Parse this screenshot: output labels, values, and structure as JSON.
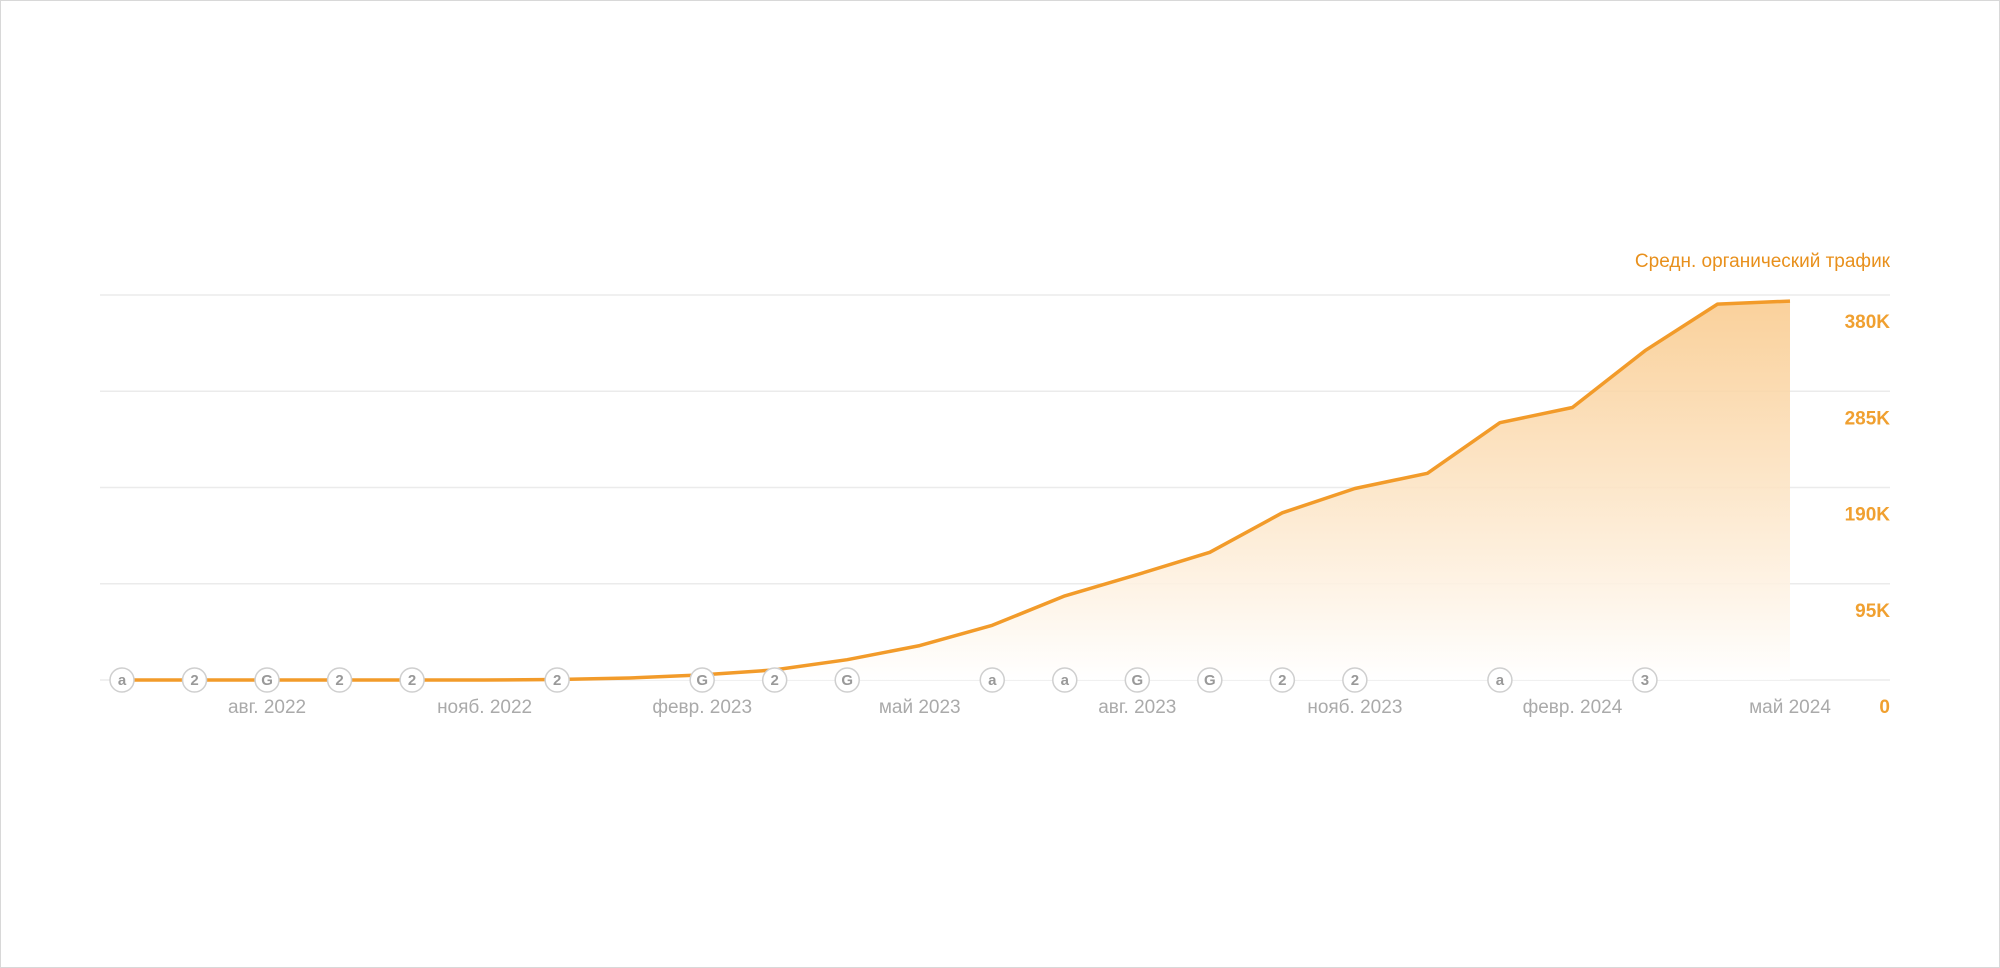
{
  "chart_data": {
    "type": "area",
    "title": "Средн. органический трафик",
    "categories": [
      null,
      null,
      "авг. 2022",
      null,
      null,
      "нояб. 2022",
      null,
      null,
      "февр. 2023",
      null,
      null,
      "май 2023",
      null,
      null,
      "авг. 2023",
      null,
      null,
      "нояб. 2023",
      null,
      null,
      "февр. 2024",
      null,
      null,
      "май 2024"
    ],
    "series": [
      {
        "color": "#f29b2a",
        "values": [
          0,
          0,
          0,
          0,
          0,
          0,
          500,
          2000,
          5000,
          10000,
          20000,
          34000,
          54000,
          83000,
          104000,
          126000,
          165000,
          189000,
          204000,
          254000,
          269000,
          325000,
          371000,
          374000
        ]
      }
    ],
    "markers": [
      "a",
      "2",
      "G",
      "2",
      "2",
      null,
      "2",
      null,
      "G",
      "2",
      "G",
      null,
      "a",
      "a",
      "G",
      "G",
      "2",
      "2",
      null,
      "a",
      null,
      "3",
      null,
      null
    ],
    "ylim": [
      0,
      380000
    ],
    "yticks": [
      0,
      {
        "value": 95000,
        "label": "95K"
      },
      {
        "value": 190000,
        "label": "190K"
      },
      {
        "value": 285000,
        "label": "285K"
      },
      {
        "value": 380000,
        "label": "380K"
      }
    ],
    "grid": true
  }
}
